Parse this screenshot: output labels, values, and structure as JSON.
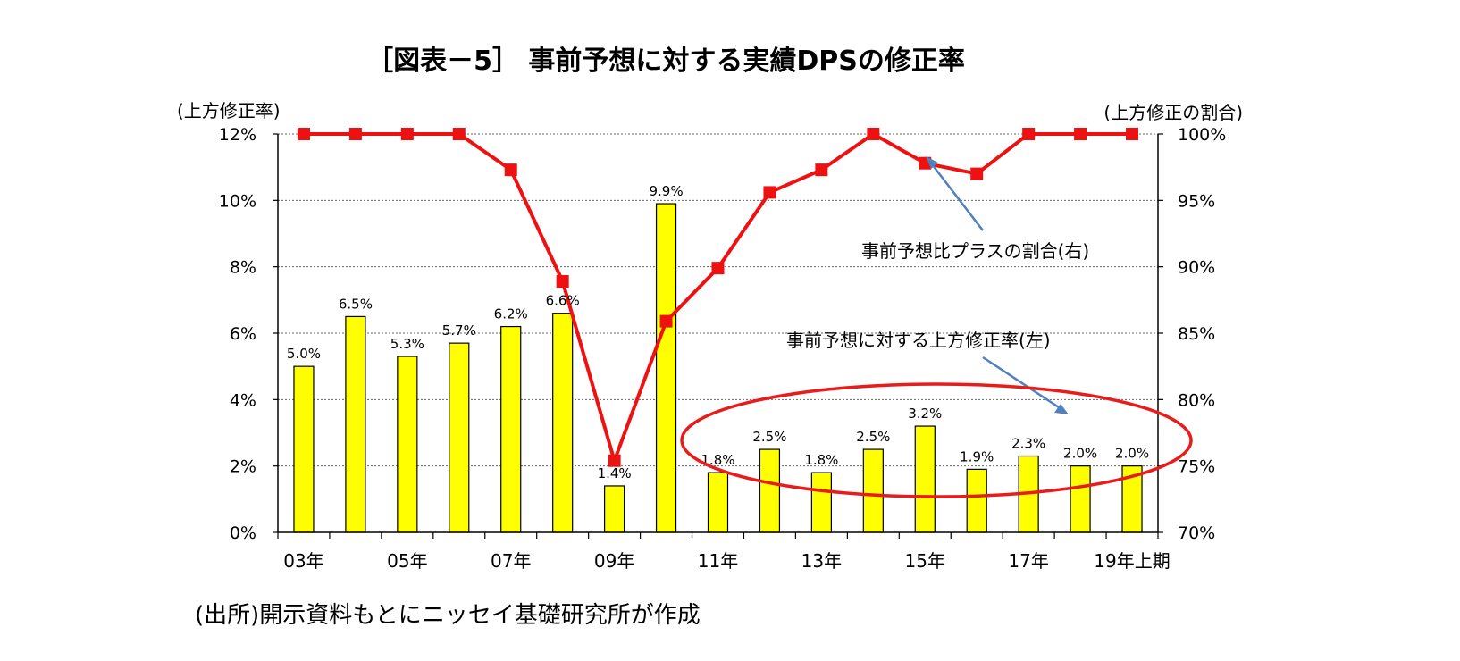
{
  "chart_data": {
    "type": "bar+line",
    "title": "［図表－5］ 事前予想に対する実績DPSの修正率",
    "y_left_label": "(上方修正率)",
    "y_right_label": "(上方修正の割合)",
    "y_left_ticks": [
      "0%",
      "2%",
      "4%",
      "6%",
      "8%",
      "10%",
      "12%"
    ],
    "y_right_ticks": [
      "70%",
      "75%",
      "80%",
      "85%",
      "90%",
      "95%",
      "100%"
    ],
    "ylim_left": [
      0,
      12
    ],
    "ylim_right": [
      70,
      100
    ],
    "x_tick_labels": [
      "03年",
      "05年",
      "07年",
      "09年",
      "11年",
      "13年",
      "15年",
      "17年",
      "19年上期"
    ],
    "categories": [
      "03",
      "04",
      "05",
      "06",
      "07",
      "08",
      "09",
      "10",
      "11",
      "12",
      "13",
      "14",
      "15",
      "16",
      "17",
      "18",
      "19上期"
    ],
    "series": [
      {
        "name": "事前予想に対する上方修正率(左)",
        "type": "bar",
        "axis": "left",
        "values": [
          5.0,
          6.5,
          5.3,
          5.7,
          6.2,
          6.6,
          1.4,
          9.9,
          1.8,
          2.5,
          1.8,
          2.5,
          3.2,
          1.9,
          2.3,
          2.0,
          2.0
        ],
        "labels": [
          "5.0%",
          "6.5%",
          "5.3%",
          "5.7%",
          "6.2%",
          "6.6%",
          "1.4%",
          "9.9%",
          "1.8%",
          "2.5%",
          "1.8%",
          "2.5%",
          "3.2%",
          "1.9%",
          "2.3%",
          "2.0%",
          "2.0%"
        ],
        "color": "#ffff00"
      },
      {
        "name": "事前予想比プラスの割合(右)",
        "type": "line",
        "axis": "right",
        "values": [
          100,
          100,
          100,
          100,
          97.3,
          88.9,
          75.4,
          85.9,
          89.9,
          95.6,
          97.3,
          100,
          97.8,
          97.0,
          100,
          100,
          100
        ],
        "color": "#ee1111"
      }
    ],
    "annotations": [
      "事前予想比プラスの割合(右)",
      "事前予想に対する上方修正率(左)"
    ],
    "grid": "horizontal dotted",
    "source": "(出所)開示資料もとにニッセイ基礎研究所が作成"
  }
}
